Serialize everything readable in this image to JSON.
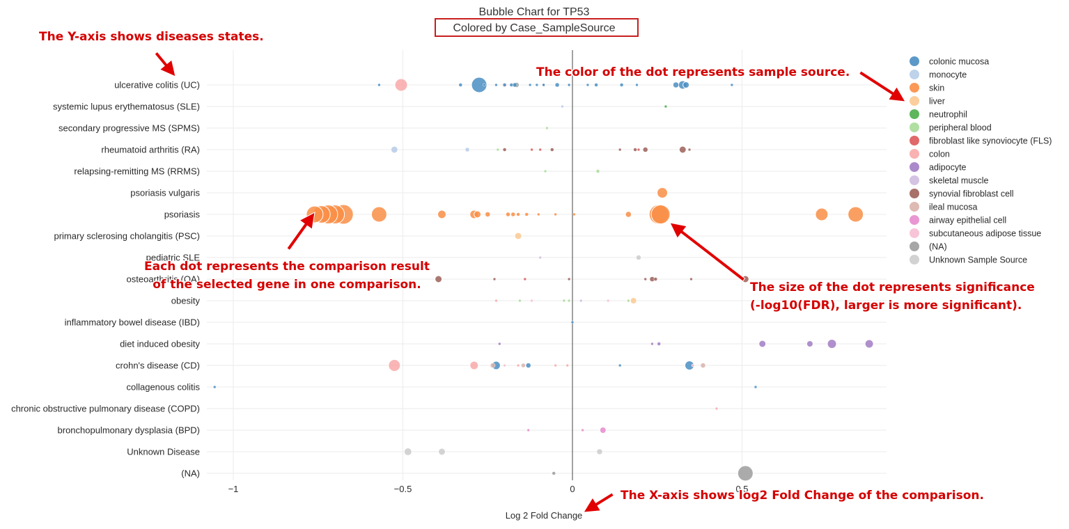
{
  "chart_data": {
    "type": "scatter",
    "title": "Bubble Chart for TP53",
    "subtitle": "Colored by Case_SampleSource",
    "xlabel": "Log 2 Fold Change",
    "ylabel": "",
    "xlim": [
      -1.07,
      0.93
    ],
    "xticks": [
      "−1",
      "−0.5",
      "0",
      "0.5"
    ],
    "grid": true,
    "legend_position": "right",
    "categories": [
      "ulcerative colitis (UC)",
      "systemic lupus erythematosus (SLE)",
      "secondary progressive MS (SPMS)",
      "rheumatoid arthritis (RA)",
      "relapsing-remitting MS (RRMS)",
      "psoriasis vulgaris",
      "psoriasis",
      "primary sclerosing cholangitis (PSC)",
      "pediatric SLE",
      "osteoarthritis (OA)",
      "obesity",
      "inflammatory bowel disease (IBD)",
      "diet induced obesity",
      "crohn's disease (CD)",
      "collagenous colitis",
      "chronic obstructive pulmonary disease (COPD)",
      "bronchopulmonary dysplasia (BPD)",
      "Unknown Disease",
      "(NA)"
    ],
    "series": [
      {
        "name": "colonic mucosa",
        "color": "#4a8ec2",
        "points": [
          {
            "y": "ulcerative colitis (UC)",
            "x": -0.57,
            "size": 2
          },
          {
            "y": "ulcerative colitis (UC)",
            "x": -0.33,
            "size": 2.5
          },
          {
            "y": "ulcerative colitis (UC)",
            "x": -0.275,
            "size": 11
          },
          {
            "y": "ulcerative colitis (UC)",
            "x": -0.26,
            "size": 2
          },
          {
            "y": "ulcerative colitis (UC)",
            "x": -0.225,
            "size": 2
          },
          {
            "y": "ulcerative colitis (UC)",
            "x": -0.2,
            "size": 2.5
          },
          {
            "y": "ulcerative colitis (UC)",
            "x": -0.18,
            "size": 2.5
          },
          {
            "y": "ulcerative colitis (UC)",
            "x": -0.17,
            "size": 3
          },
          {
            "y": "ulcerative colitis (UC)",
            "x": -0.125,
            "size": 2
          },
          {
            "y": "ulcerative colitis (UC)",
            "x": -0.105,
            "size": 2
          },
          {
            "y": "ulcerative colitis (UC)",
            "x": -0.085,
            "size": 2
          },
          {
            "y": "ulcerative colitis (UC)",
            "x": -0.045,
            "size": 3
          },
          {
            "y": "ulcerative colitis (UC)",
            "x": -0.01,
            "size": 2
          },
          {
            "y": "ulcerative colitis (UC)",
            "x": 0.045,
            "size": 2
          },
          {
            "y": "ulcerative colitis (UC)",
            "x": 0.07,
            "size": 2.5
          },
          {
            "y": "ulcerative colitis (UC)",
            "x": 0.145,
            "size": 2.5
          },
          {
            "y": "ulcerative colitis (UC)",
            "x": 0.19,
            "size": 2
          },
          {
            "y": "ulcerative colitis (UC)",
            "x": 0.305,
            "size": 4
          },
          {
            "y": "ulcerative colitis (UC)",
            "x": 0.325,
            "size": 6
          },
          {
            "y": "ulcerative colitis (UC)",
            "x": 0.335,
            "size": 4.5
          },
          {
            "y": "ulcerative colitis (UC)",
            "x": 0.47,
            "size": 2
          },
          {
            "y": "inflammatory bowel disease (IBD)",
            "x": 0.0,
            "size": 2
          },
          {
            "y": "crohn's disease (CD)",
            "x": -0.225,
            "size": 6
          },
          {
            "y": "crohn's disease (CD)",
            "x": -0.13,
            "size": 3.5
          },
          {
            "y": "crohn's disease (CD)",
            "x": 0.14,
            "size": 2
          },
          {
            "y": "crohn's disease (CD)",
            "x": 0.345,
            "size": 6.5
          },
          {
            "y": "collagenous colitis",
            "x": -1.055,
            "size": 2
          },
          {
            "y": "collagenous colitis",
            "x": 0.54,
            "size": 2
          }
        ]
      },
      {
        "name": "monocyte",
        "color": "#b7cde8",
        "points": [
          {
            "y": "ulcerative colitis (UC)",
            "x": -0.01,
            "size": 2
          },
          {
            "y": "systemic lupus erythematosus (SLE)",
            "x": -0.03,
            "size": 2
          },
          {
            "y": "rheumatoid arthritis (RA)",
            "x": -0.525,
            "size": 5
          },
          {
            "y": "rheumatoid arthritis (RA)",
            "x": -0.31,
            "size": 3
          }
        ]
      },
      {
        "name": "skin",
        "color": "#f98e46",
        "points": [
          {
            "y": "psoriasis vulgaris",
            "x": 0.265,
            "size": 7.5
          },
          {
            "y": "psoriasis",
            "x": -0.76,
            "size": 12
          },
          {
            "y": "psoriasis",
            "x": -0.74,
            "size": 12.5
          },
          {
            "y": "psoriasis",
            "x": -0.72,
            "size": 13.5
          },
          {
            "y": "psoriasis",
            "x": -0.7,
            "size": 13.5
          },
          {
            "y": "psoriasis",
            "x": -0.675,
            "size": 14
          },
          {
            "y": "psoriasis",
            "x": -0.57,
            "size": 11
          },
          {
            "y": "psoriasis",
            "x": -0.385,
            "size": 6
          },
          {
            "y": "psoriasis",
            "x": -0.29,
            "size": 6
          },
          {
            "y": "psoriasis",
            "x": -0.28,
            "size": 5
          },
          {
            "y": "psoriasis",
            "x": -0.25,
            "size": 3.5
          },
          {
            "y": "psoriasis",
            "x": -0.19,
            "size": 3
          },
          {
            "y": "psoriasis",
            "x": -0.175,
            "size": 3
          },
          {
            "y": "psoriasis",
            "x": -0.16,
            "size": 2.5
          },
          {
            "y": "psoriasis",
            "x": -0.135,
            "size": 2.5
          },
          {
            "y": "psoriasis",
            "x": -0.1,
            "size": 2
          },
          {
            "y": "psoriasis",
            "x": -0.05,
            "size": 2
          },
          {
            "y": "psoriasis",
            "x": 0.005,
            "size": 2
          },
          {
            "y": "psoriasis",
            "x": 0.165,
            "size": 4
          },
          {
            "y": "psoriasis",
            "x": 0.255,
            "size": 14
          },
          {
            "y": "psoriasis",
            "x": 0.26,
            "size": 13.5
          },
          {
            "y": "psoriasis",
            "x": 0.735,
            "size": 9
          },
          {
            "y": "psoriasis",
            "x": 0.835,
            "size": 11
          }
        ]
      },
      {
        "name": "liver",
        "color": "#fcc992",
        "points": [
          {
            "y": "primary sclerosing cholangitis (PSC)",
            "x": -0.16,
            "size": 5
          },
          {
            "y": "obesity",
            "x": 0.18,
            "size": 4.5
          }
        ]
      },
      {
        "name": "neutrophil",
        "color": "#4eae4a",
        "points": [
          {
            "y": "systemic lupus erythematosus (SLE)",
            "x": 0.275,
            "size": 2
          }
        ]
      },
      {
        "name": "peripheral blood",
        "color": "#a8dc98",
        "points": [
          {
            "y": "secondary progressive MS (SPMS)",
            "x": -0.075,
            "size": 2
          },
          {
            "y": "rheumatoid arthritis (RA)",
            "x": -0.22,
            "size": 2
          },
          {
            "y": "relapsing-remitting MS (RRMS)",
            "x": -0.08,
            "size": 2
          },
          {
            "y": "relapsing-remitting MS (RRMS)",
            "x": 0.075,
            "size": 2.5
          },
          {
            "y": "obesity",
            "x": -0.155,
            "size": 2
          },
          {
            "y": "obesity",
            "x": -0.025,
            "size": 2
          },
          {
            "y": "obesity",
            "x": -0.01,
            "size": 2
          },
          {
            "y": "obesity",
            "x": 0.165,
            "size": 2
          }
        ]
      },
      {
        "name": "fibroblast like synoviocyte (FLS)",
        "color": "#dd5959",
        "points": [
          {
            "y": "rheumatoid arthritis (RA)",
            "x": -0.12,
            "size": 2
          },
          {
            "y": "rheumatoid arthritis (RA)",
            "x": -0.095,
            "size": 2
          },
          {
            "y": "rheumatoid arthritis (RA)",
            "x": 0.195,
            "size": 2
          },
          {
            "y": "osteoarthritis (OA)",
            "x": -0.14,
            "size": 2
          }
        ]
      },
      {
        "name": "colon",
        "color": "#f9a9a9",
        "points": [
          {
            "y": "ulcerative colitis (UC)",
            "x": -0.505,
            "size": 9
          },
          {
            "y": "ulcerative colitis (UC)",
            "x": -0.2,
            "size": 3
          },
          {
            "y": "obesity",
            "x": -0.225,
            "size": 2
          },
          {
            "y": "crohn's disease (CD)",
            "x": -0.525,
            "size": 8.5
          },
          {
            "y": "crohn's disease (CD)",
            "x": -0.29,
            "size": 6
          },
          {
            "y": "crohn's disease (CD)",
            "x": -0.16,
            "size": 2
          },
          {
            "y": "crohn's disease (CD)",
            "x": -0.05,
            "size": 2
          },
          {
            "y": "crohn's disease (CD)",
            "x": -0.015,
            "size": 2
          },
          {
            "y": "chronic obstructive pulmonary disease (COPD)",
            "x": 0.425,
            "size": 2
          }
        ]
      },
      {
        "name": "adipocyte",
        "color": "#a27dc4",
        "points": [
          {
            "y": "diet induced obesity",
            "x": -0.215,
            "size": 2
          },
          {
            "y": "diet induced obesity",
            "x": 0.235,
            "size": 2
          },
          {
            "y": "diet induced obesity",
            "x": 0.255,
            "size": 2.5
          },
          {
            "y": "diet induced obesity",
            "x": 0.56,
            "size": 5
          },
          {
            "y": "diet induced obesity",
            "x": 0.7,
            "size": 4.5
          },
          {
            "y": "diet induced obesity",
            "x": 0.765,
            "size": 6.5
          },
          {
            "y": "diet induced obesity",
            "x": 0.875,
            "size": 6
          }
        ]
      },
      {
        "name": "skeletal muscle",
        "color": "#cfbde0",
        "points": [
          {
            "y": "pediatric SLE",
            "x": -0.095,
            "size": 2
          },
          {
            "y": "obesity",
            "x": 0.025,
            "size": 2
          }
        ]
      },
      {
        "name": "synovial fibroblast cell",
        "color": "#9d6059",
        "points": [
          {
            "y": "ulcerative colitis (UC)",
            "x": -0.085,
            "size": 2
          },
          {
            "y": "rheumatoid arthritis (RA)",
            "x": -0.2,
            "size": 2.5
          },
          {
            "y": "rheumatoid arthritis (RA)",
            "x": -0.06,
            "size": 2.5
          },
          {
            "y": "rheumatoid arthritis (RA)",
            "x": 0.14,
            "size": 2
          },
          {
            "y": "rheumatoid arthritis (RA)",
            "x": 0.185,
            "size": 2.5
          },
          {
            "y": "rheumatoid arthritis (RA)",
            "x": 0.215,
            "size": 3.5
          },
          {
            "y": "rheumatoid arthritis (RA)",
            "x": 0.325,
            "size": 5
          },
          {
            "y": "rheumatoid arthritis (RA)",
            "x": 0.345,
            "size": 2
          },
          {
            "y": "osteoarthritis (OA)",
            "x": -0.395,
            "size": 5
          },
          {
            "y": "osteoarthritis (OA)",
            "x": -0.23,
            "size": 2
          },
          {
            "y": "osteoarthritis (OA)",
            "x": -0.01,
            "size": 2
          },
          {
            "y": "osteoarthritis (OA)",
            "x": 0.215,
            "size": 2
          },
          {
            "y": "osteoarthritis (OA)",
            "x": 0.235,
            "size": 3.5
          },
          {
            "y": "osteoarthritis (OA)",
            "x": 0.245,
            "size": 2.5
          },
          {
            "y": "osteoarthritis (OA)",
            "x": 0.35,
            "size": 2
          },
          {
            "y": "osteoarthritis (OA)",
            "x": 0.51,
            "size": 5
          }
        ]
      },
      {
        "name": "ileal mucosa",
        "color": "#d9b2ab",
        "points": [
          {
            "y": "crohn's disease (CD)",
            "x": -0.235,
            "size": 3.5
          },
          {
            "y": "crohn's disease (CD)",
            "x": -0.145,
            "size": 3
          },
          {
            "y": "crohn's disease (CD)",
            "x": 0.385,
            "size": 3.5
          }
        ]
      },
      {
        "name": "airway epithelial cell",
        "color": "#e58ccd",
        "points": [
          {
            "y": "bronchopulmonary dysplasia (BPD)",
            "x": -0.13,
            "size": 2
          },
          {
            "y": "bronchopulmonary dysplasia (BPD)",
            "x": 0.03,
            "size": 2
          },
          {
            "y": "bronchopulmonary dysplasia (BPD)",
            "x": 0.09,
            "size": 4.5
          }
        ]
      },
      {
        "name": "subcutaneous adipose tissue",
        "color": "#f6bfd3",
        "points": [
          {
            "y": "obesity",
            "x": -0.12,
            "size": 2
          },
          {
            "y": "obesity",
            "x": 0.105,
            "size": 2
          },
          {
            "y": "crohn's disease (CD)",
            "x": 0.355,
            "size": 2
          },
          {
            "y": "crohn's disease (CD)",
            "x": -0.2,
            "size": 2
          }
        ]
      },
      {
        "name": "(NA)",
        "color": "#9c9c9c",
        "points": [
          {
            "y": "ulcerative colitis (UC)",
            "x": -0.165,
            "size": 3.5
          },
          {
            "y": "(NA)",
            "x": -0.055,
            "size": 2.5
          },
          {
            "y": "(NA)",
            "x": 0.51,
            "size": 11
          }
        ]
      },
      {
        "name": "Unknown Sample Source",
        "color": "#cdcdcd",
        "points": [
          {
            "y": "pediatric SLE",
            "x": 0.195,
            "size": 3.5
          },
          {
            "y": "Unknown Disease",
            "x": -0.485,
            "size": 5.5
          },
          {
            "y": "Unknown Disease",
            "x": -0.385,
            "size": 5
          },
          {
            "y": "Unknown Disease",
            "x": 0.08,
            "size": 4
          }
        ]
      }
    ]
  },
  "annotations": {
    "y_axis": "The Y-axis shows  diseases states.",
    "color": "The color of the dot represents sample source.",
    "dot_line1": "Each dot represents the comparison result",
    "dot_line2": "of the selected gene in one comparison.",
    "size_line1": "The size of the dot represents significance",
    "size_line2": "(-log10(FDR), larger is more significant).",
    "x_axis": "The X-axis shows log2 Fold Change of the comparison."
  }
}
